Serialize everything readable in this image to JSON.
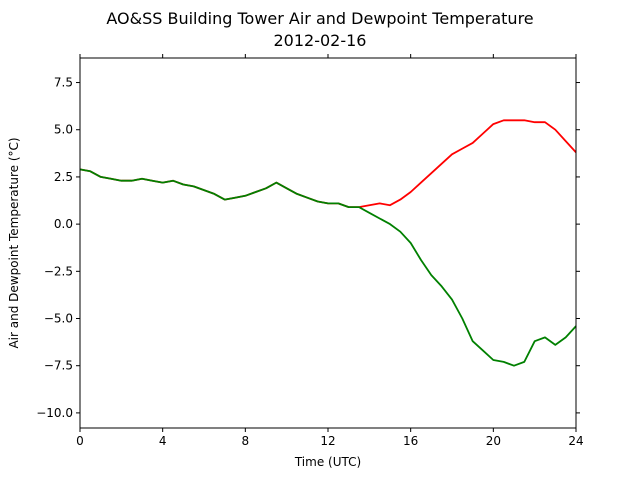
{
  "chart_data": {
    "type": "line",
    "title": "AO&SS Building Tower Air and Dewpoint Temperature",
    "subtitle": "2012-02-16",
    "xlabel": "Time (UTC)",
    "ylabel": "Air and Dewpoint Temperature (°C)",
    "xlim": [
      0,
      24
    ],
    "ylim": [
      -10.8,
      8.8
    ],
    "xticks": [
      0,
      4,
      8,
      12,
      16,
      20,
      24
    ],
    "yticks": [
      -10.0,
      -7.5,
      -5.0,
      -2.5,
      0.0,
      2.5,
      5.0,
      7.5
    ],
    "grid": false,
    "series": [
      {
        "color": "#ff0000",
        "x": [
          0,
          0.5,
          1,
          1.5,
          2,
          2.5,
          3,
          3.5,
          4,
          4.5,
          5,
          5.5,
          6,
          6.5,
          7,
          7.5,
          8,
          8.5,
          9,
          9.5,
          10,
          10.5,
          11,
          11.5,
          12,
          12.5,
          13,
          13.5,
          14,
          14.5,
          15,
          15.5,
          16,
          16.5,
          17,
          17.5,
          18,
          18.5,
          19,
          19.5,
          20,
          20.5,
          21,
          21.5,
          22,
          22.5,
          23,
          23.5,
          24
        ],
        "y": [
          2.9,
          2.8,
          2.5,
          2.4,
          2.3,
          2.3,
          2.4,
          2.3,
          2.2,
          2.3,
          2.1,
          2.0,
          1.8,
          1.6,
          1.3,
          1.4,
          1.5,
          1.7,
          1.9,
          2.2,
          1.9,
          1.6,
          1.4,
          1.2,
          1.1,
          1.1,
          0.9,
          0.9,
          1.0,
          1.1,
          1.0,
          1.3,
          1.7,
          2.2,
          2.7,
          3.2,
          3.7,
          4.0,
          4.3,
          4.8,
          5.3,
          5.5,
          5.5,
          5.5,
          5.4,
          5.4,
          5.0,
          4.4,
          3.8
        ]
      },
      {
        "color": "#008000",
        "x": [
          0,
          0.5,
          1,
          1.5,
          2,
          2.5,
          3,
          3.5,
          4,
          4.5,
          5,
          5.5,
          6,
          6.5,
          7,
          7.5,
          8,
          8.5,
          9,
          9.5,
          10,
          10.5,
          11,
          11.5,
          12,
          12.5,
          13,
          13.5,
          14,
          14.5,
          15,
          15.5,
          16,
          16.5,
          17,
          17.5,
          18,
          18.5,
          19,
          19.5,
          20,
          20.5,
          21,
          21.5,
          22,
          22.5,
          23,
          23.5,
          24
        ],
        "y": [
          2.9,
          2.8,
          2.5,
          2.4,
          2.3,
          2.3,
          2.4,
          2.3,
          2.2,
          2.3,
          2.1,
          2.0,
          1.8,
          1.6,
          1.3,
          1.4,
          1.5,
          1.7,
          1.9,
          2.2,
          1.9,
          1.6,
          1.4,
          1.2,
          1.1,
          1.1,
          0.9,
          0.9,
          0.6,
          0.3,
          0.0,
          -0.4,
          -1.0,
          -1.9,
          -2.7,
          -3.3,
          -4.0,
          -5.0,
          -6.2,
          -6.7,
          -7.2,
          -7.3,
          -7.5,
          -7.3,
          -6.2,
          -6.0,
          -6.4,
          -6.0,
          -5.4
        ]
      }
    ]
  }
}
